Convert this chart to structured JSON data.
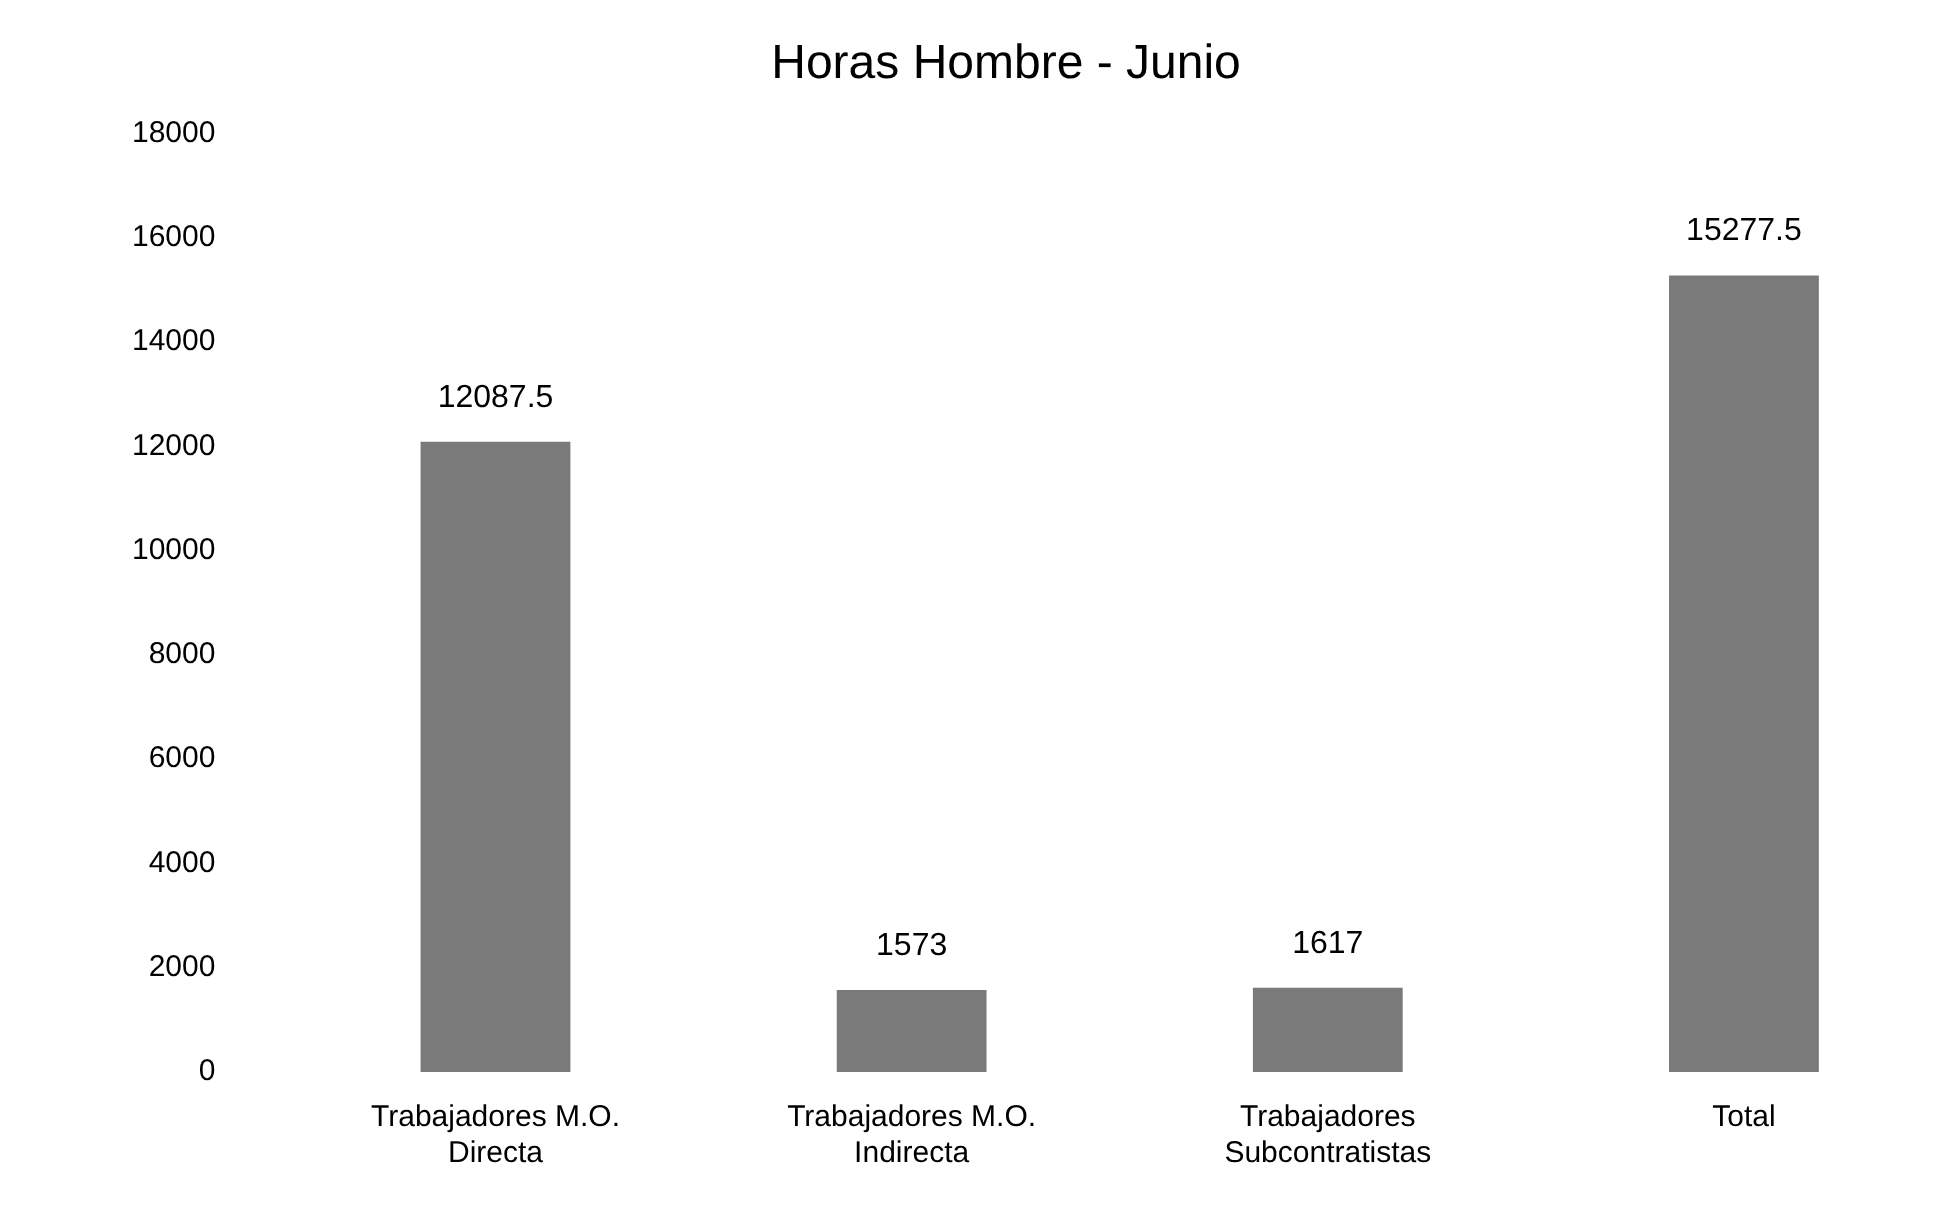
{
  "chart_data": {
    "type": "bar",
    "title": "Horas Hombre - Junio",
    "categories": [
      "Trabajadores M.O. Directa",
      "Trabajadores M.O. Indirecta",
      "Trabajadores Subcontratistas",
      "Total"
    ],
    "values": [
      12087.5,
      1573,
      1617,
      15277.5
    ],
    "color": "#7a7a7a",
    "ylim": [
      0,
      18000
    ],
    "yticks": [
      0,
      2000,
      4000,
      6000,
      8000,
      10000,
      12000,
      14000,
      16000,
      18000
    ],
    "grid": false,
    "legend": false,
    "data_labels": true
  }
}
